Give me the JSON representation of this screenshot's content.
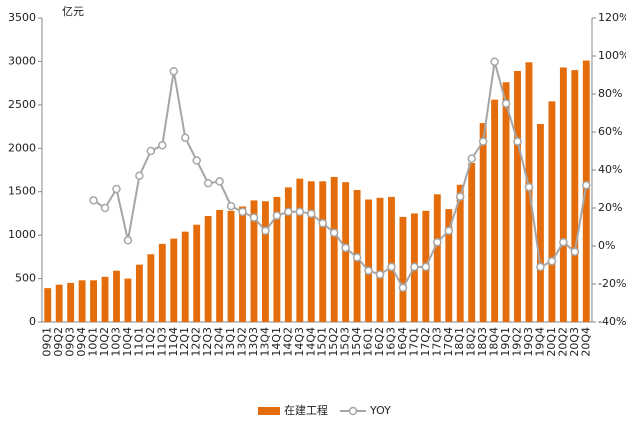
{
  "chart_data": {
    "type": "bar_line",
    "y_label": "亿元",
    "categories": [
      "09Q1",
      "09Q2",
      "09Q3",
      "09Q4",
      "10Q1",
      "10Q2",
      "10Q3",
      "10Q4",
      "11Q1",
      "11Q2",
      "11Q3",
      "11Q4",
      "12Q1",
      "12Q2",
      "12Q3",
      "12Q4",
      "13Q1",
      "13Q2",
      "13Q3",
      "13Q4",
      "14Q1",
      "14Q2",
      "14Q3",
      "14Q4",
      "15Q1",
      "15Q2",
      "15Q3",
      "15Q4",
      "16Q1",
      "16Q2",
      "16Q3",
      "16Q4",
      "17Q1",
      "17Q2",
      "17Q3",
      "17Q4",
      "18Q1",
      "18Q2",
      "18Q3",
      "18Q4",
      "19Q1",
      "19Q2",
      "19Q3",
      "19Q4",
      "20Q1",
      "20Q2",
      "20Q3",
      "20Q4"
    ],
    "series": [
      {
        "name": "在建工程",
        "type": "bar",
        "color": "#e46c0a",
        "values": [
          390,
          430,
          450,
          480,
          480,
          520,
          590,
          500,
          660,
          780,
          900,
          960,
          1040,
          1120,
          1220,
          1290,
          1280,
          1330,
          1400,
          1390,
          1440,
          1550,
          1650,
          1620,
          1620,
          1670,
          1610,
          1520,
          1410,
          1430,
          1440,
          1210,
          1250,
          1280,
          1470,
          1300,
          1580,
          1830,
          2290,
          2560,
          2760,
          2890,
          2990,
          2280,
          2540,
          2930,
          2900,
          3010
        ]
      },
      {
        "name": "YOY",
        "type": "line",
        "axis": "y2",
        "color": "#a6a6a6",
        "values": [
          null,
          null,
          null,
          null,
          24,
          20,
          30,
          3,
          37,
          50,
          53,
          92,
          57,
          45,
          33,
          34,
          21,
          18,
          15,
          8,
          16,
          18,
          18,
          17,
          12,
          7,
          -1,
          -6,
          -13,
          -15,
          -11,
          -22,
          -11,
          -11,
          2,
          8,
          26,
          46,
          55,
          97,
          75,
          55,
          31,
          -11,
          -8,
          2,
          -3,
          32
        ]
      }
    ],
    "ylim": [
      0,
      3500
    ],
    "yticks": [
      0,
      500,
      1000,
      1500,
      2000,
      2500,
      3000,
      3500
    ],
    "y2lim": [
      -40,
      120
    ],
    "y2ticks": [
      {
        "value": -40,
        "label": "-40%"
      },
      {
        "value": -20,
        "label": "-20%"
      },
      {
        "value": 0,
        "label": "0%"
      },
      {
        "value": 20,
        "label": "20%"
      },
      {
        "value": 40,
        "label": "40%"
      },
      {
        "value": 60,
        "label": "60%"
      },
      {
        "value": 80,
        "label": "80%"
      },
      {
        "value": 100,
        "label": "100%"
      },
      {
        "value": 120,
        "label": "120%"
      }
    ],
    "legend": "bottom"
  }
}
